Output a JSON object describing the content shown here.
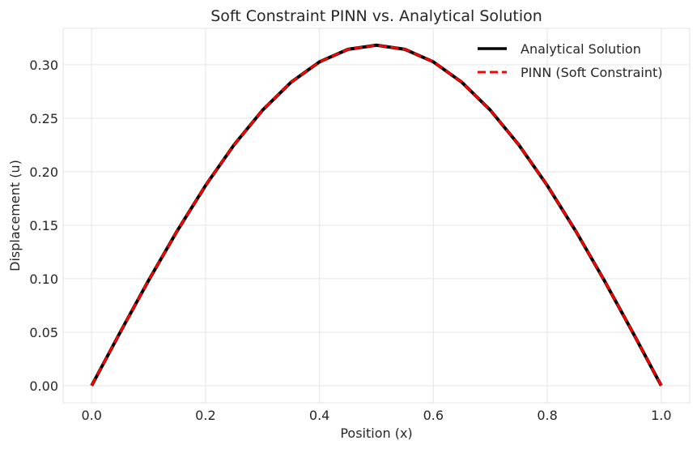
{
  "chart_data": {
    "type": "line",
    "title": "Soft Constraint PINN vs. Analytical Solution",
    "xlabel": "Position (x)",
    "ylabel": "Displacement (u)",
    "xlim": [
      -0.05,
      1.05
    ],
    "ylim": [
      -0.016,
      0.334
    ],
    "x_ticks": [
      0.0,
      0.2,
      0.4,
      0.6,
      0.8,
      1.0
    ],
    "x_tick_labels": [
      "0.0",
      "0.2",
      "0.4",
      "0.6",
      "0.8",
      "1.0"
    ],
    "y_ticks": [
      0.0,
      0.05,
      0.1,
      0.15,
      0.2,
      0.25,
      0.3
    ],
    "y_tick_labels": [
      "0.00",
      "0.05",
      "0.10",
      "0.15",
      "0.20",
      "0.25",
      "0.30"
    ],
    "grid": true,
    "legend_position": "top-right",
    "x": [
      0.0,
      0.05,
      0.1,
      0.15,
      0.2,
      0.25,
      0.3,
      0.35,
      0.4,
      0.45,
      0.5,
      0.55,
      0.6,
      0.65,
      0.7,
      0.75,
      0.8,
      0.85,
      0.9,
      0.95,
      1.0
    ],
    "series": [
      {
        "name": "Analytical Solution",
        "color": "#000000",
        "style": "solid",
        "values": [
          0.0,
          0.0498,
          0.0984,
          0.1445,
          0.1871,
          0.2251,
          0.2575,
          0.2836,
          0.3027,
          0.3144,
          0.3183,
          0.3144,
          0.3027,
          0.2836,
          0.2575,
          0.2251,
          0.1871,
          0.1445,
          0.0984,
          0.0498,
          0.0
        ]
      },
      {
        "name": "PINN (Soft Constraint)",
        "color": "#ff0000",
        "style": "dashed",
        "values": [
          0.0,
          0.0498,
          0.0984,
          0.1445,
          0.1871,
          0.2251,
          0.2575,
          0.2836,
          0.3027,
          0.3144,
          0.3183,
          0.3144,
          0.3027,
          0.2836,
          0.2575,
          0.2251,
          0.1871,
          0.1445,
          0.0984,
          0.0498,
          0.0
        ]
      }
    ]
  }
}
